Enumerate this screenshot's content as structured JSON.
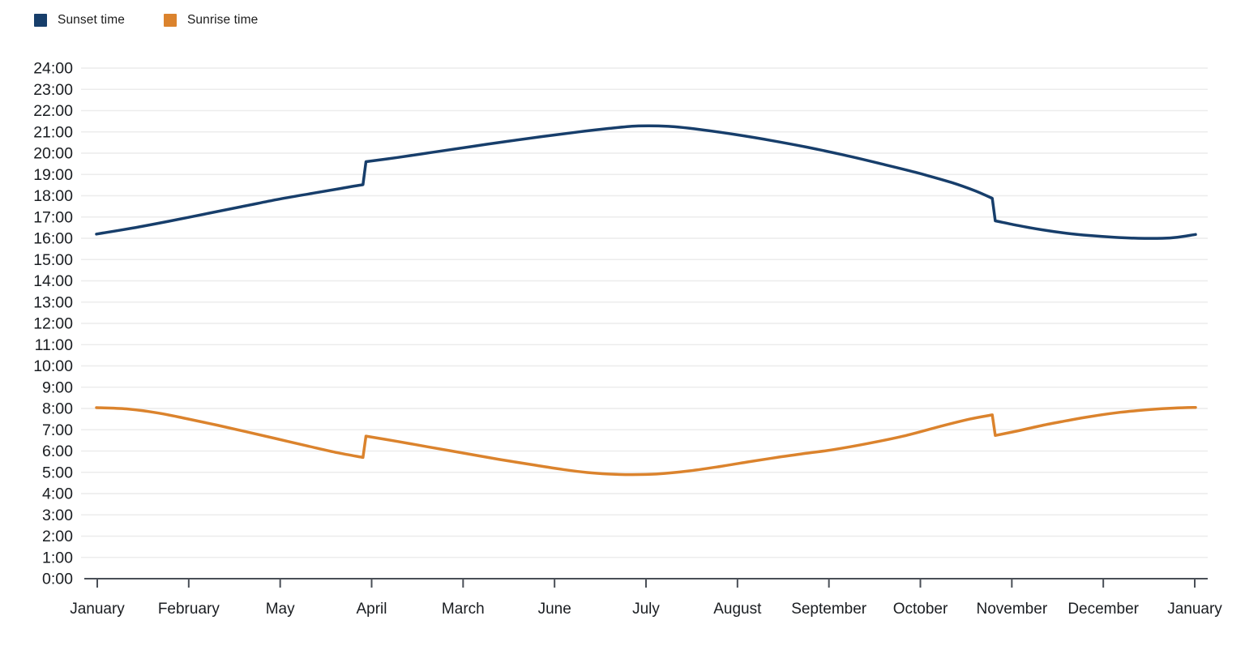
{
  "legend": {
    "items": [
      {
        "label": "Sunset time",
        "color": "#173E6B"
      },
      {
        "label": "Sunrise time",
        "color": "#DB832D"
      }
    ]
  },
  "chart_data": {
    "type": "line",
    "title": "",
    "x_tick_labels": [
      "January",
      "February",
      "May",
      "April",
      "March",
      "June",
      "July",
      "August",
      "September",
      "October",
      "November",
      "December",
      "January"
    ],
    "y_tick_labels": [
      "24:00",
      "23:00",
      "22:00",
      "21:00",
      "20:00",
      "19:00",
      "18:00",
      "17:00",
      "16:00",
      "15:00",
      "14:00",
      "13:00",
      "12:00",
      "11:00",
      "10:00",
      "9:00",
      "8:00",
      "7:00",
      "6:00",
      "5:00",
      "4:00",
      "3:00",
      "2:00",
      "1:00",
      "0:00"
    ],
    "y_axis": {
      "min_hour": 0,
      "max_hour": 24,
      "step_hours": 1,
      "unit": "time of day (HH:MM)"
    },
    "x_axis": {
      "unit": "day of year",
      "range_days": [
        0,
        365
      ]
    },
    "grid": "horizontal",
    "legend_position": "top-left",
    "dst_transitions": {
      "spring_forward_day": 89,
      "fall_back_day": 298
    },
    "series": [
      {
        "name": "Sunset time",
        "color": "#173E6B",
        "stroke_width": 3.5,
        "segments": [
          [
            [
              0,
              16.2
            ],
            [
              12,
              16.48
            ],
            [
              24,
              16.8
            ],
            [
              36,
              17.14
            ],
            [
              48,
              17.48
            ],
            [
              60,
              17.82
            ],
            [
              72,
              18.12
            ],
            [
              81,
              18.34
            ],
            [
              88.5,
              18.52
            ]
          ],
          [
            [
              89.5,
              19.6
            ],
            [
              100,
              19.8
            ],
            [
              112,
              20.05
            ],
            [
              124,
              20.3
            ],
            [
              136,
              20.55
            ],
            [
              148,
              20.78
            ],
            [
              160,
              21.0
            ],
            [
              170,
              21.16
            ],
            [
              180,
              21.28
            ],
            [
              190,
              21.26
            ],
            [
              200,
              21.12
            ],
            [
              212,
              20.88
            ],
            [
              224,
              20.6
            ],
            [
              236,
              20.28
            ],
            [
              248,
              19.92
            ],
            [
              260,
              19.52
            ],
            [
              272,
              19.1
            ],
            [
              284,
              18.62
            ],
            [
              292,
              18.22
            ],
            [
              297.5,
              17.88
            ]
          ],
          [
            [
              298.5,
              16.82
            ],
            [
              306,
              16.6
            ],
            [
              314,
              16.4
            ],
            [
              322,
              16.24
            ],
            [
              330,
              16.13
            ],
            [
              338,
              16.05
            ],
            [
              346,
              16.0
            ],
            [
              354,
              16.0
            ],
            [
              359,
              16.05
            ],
            [
              365,
              16.18
            ]
          ]
        ]
      },
      {
        "name": "Sunrise time",
        "color": "#DB832D",
        "stroke_width": 3.5,
        "segments": [
          [
            [
              0,
              8.04
            ],
            [
              10,
              7.98
            ],
            [
              20,
              7.8
            ],
            [
              30,
              7.52
            ],
            [
              40,
              7.22
            ],
            [
              50,
              6.9
            ],
            [
              60,
              6.57
            ],
            [
              70,
              6.24
            ],
            [
              80,
              5.92
            ],
            [
              88.5,
              5.7
            ]
          ],
          [
            [
              89.5,
              6.7
            ],
            [
              100,
              6.45
            ],
            [
              110,
              6.2
            ],
            [
              122,
              5.9
            ],
            [
              134,
              5.6
            ],
            [
              146,
              5.33
            ],
            [
              155,
              5.13
            ],
            [
              163,
              4.99
            ],
            [
              170,
              4.92
            ],
            [
              178,
              4.89
            ],
            [
              186,
              4.92
            ],
            [
              196,
              5.05
            ],
            [
              206,
              5.25
            ],
            [
              216,
              5.48
            ],
            [
              226,
              5.7
            ],
            [
              236,
              5.9
            ],
            [
              244,
              6.05
            ],
            [
              256,
              6.35
            ],
            [
              268,
              6.7
            ],
            [
              280,
              7.15
            ],
            [
              290,
              7.5
            ],
            [
              297.5,
              7.7
            ]
          ],
          [
            [
              298.5,
              6.73
            ],
            [
              306,
              6.95
            ],
            [
              314,
              7.2
            ],
            [
              322,
              7.42
            ],
            [
              330,
              7.62
            ],
            [
              340,
              7.82
            ],
            [
              350,
              7.95
            ],
            [
              358,
              8.02
            ],
            [
              365,
              8.05
            ]
          ]
        ]
      }
    ],
    "colors": {
      "gridline": "#ececec",
      "axis_line": "#4a4f57",
      "tick_label": "#1a1d21"
    }
  }
}
